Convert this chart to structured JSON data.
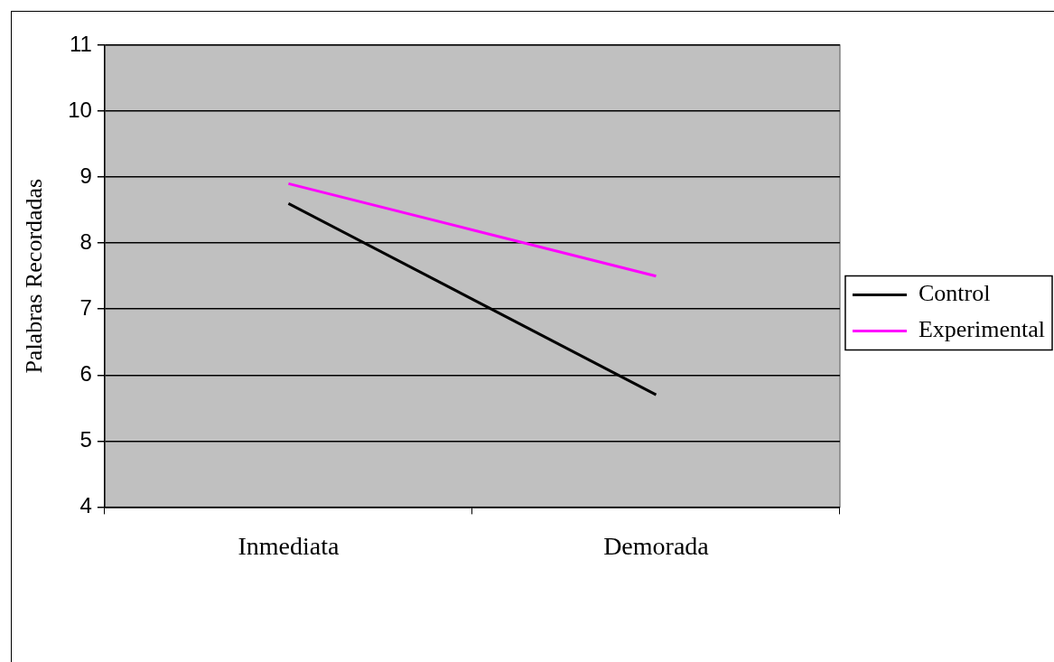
{
  "chart_data": {
    "type": "line",
    "ylabel": "Palabras Recordadas",
    "categories": [
      "Inmediata",
      "Demorada"
    ],
    "series": [
      {
        "name": "Control",
        "color": "#000000",
        "values": [
          8.6,
          5.7
        ]
      },
      {
        "name": "Experimental",
        "color": "#ff00ff",
        "values": [
          8.9,
          7.5
        ]
      }
    ],
    "ylim": [
      4,
      11
    ],
    "yticks": [
      4,
      5,
      6,
      7,
      8,
      9,
      10,
      11
    ],
    "grid": "y",
    "legend": "right",
    "marker": "none",
    "line_style": "solid"
  }
}
